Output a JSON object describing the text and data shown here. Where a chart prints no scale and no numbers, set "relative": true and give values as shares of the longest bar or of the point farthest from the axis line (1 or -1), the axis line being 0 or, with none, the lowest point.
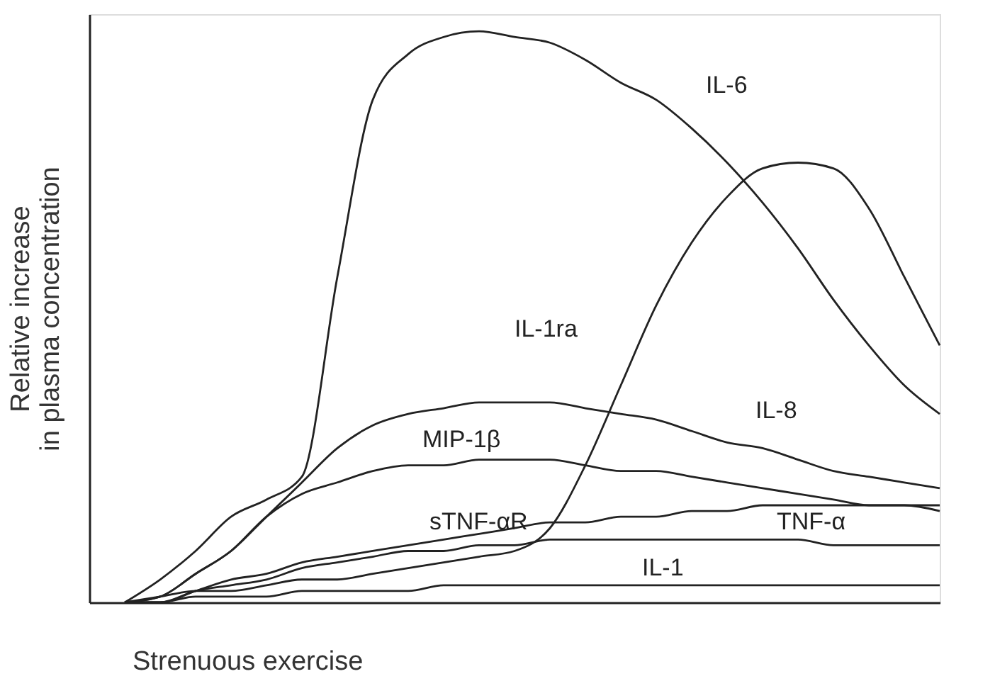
{
  "chart_data": {
    "type": "line",
    "relative": true,
    "xlabel": "Strenuous exercise",
    "ylabel": "Relative increase in plasma concentration",
    "grid": false,
    "legend": false,
    "marker": "none",
    "line_style": "solid",
    "categories": [
      null,
      null,
      null,
      null,
      null,
      null,
      null,
      null,
      null,
      null,
      null,
      null,
      null,
      null,
      null,
      null,
      null,
      null,
      null,
      null,
      null,
      null,
      null,
      null,
      null
    ],
    "series": [
      {
        "name": "IL-6",
        "color": "#222222",
        "values": [
          null,
          0,
          0.04,
          0.09,
          0.15,
          0.18,
          0.22,
          0.57,
          0.88,
          0.96,
          0.99,
          1,
          0.99,
          0.98,
          0.95,
          0.91,
          0.88,
          0.83,
          0.77,
          0.7,
          0.62,
          0.53,
          0.45,
          0.38,
          0.33
        ]
      },
      {
        "name": "IL-1ra",
        "color": "#222222",
        "values": [
          null,
          0,
          0.01,
          0.02,
          0.02,
          0.03,
          0.04,
          0.04,
          0.05,
          0.06,
          0.07,
          0.08,
          0.09,
          0.13,
          0.24,
          0.38,
          0.52,
          0.63,
          0.71,
          0.76,
          0.77,
          0.76,
          0.69,
          0.57,
          0.45
        ]
      },
      {
        "name": "IL-8",
        "color": "#222222",
        "values": [
          null,
          0,
          0.01,
          0.05,
          0.09,
          0.15,
          0.21,
          0.27,
          0.31,
          0.33,
          0.34,
          0.35,
          0.35,
          0.35,
          0.34,
          0.33,
          0.32,
          0.3,
          0.28,
          0.27,
          0.25,
          0.23,
          0.22,
          0.21,
          0.2
        ]
      },
      {
        "name": "MIP-1β",
        "color": "#222222",
        "values": [
          null,
          0,
          0.01,
          0.05,
          0.09,
          0.15,
          0.19,
          0.21,
          0.23,
          0.24,
          0.24,
          0.25,
          0.25,
          0.25,
          0.24,
          0.23,
          0.23,
          0.22,
          0.21,
          0.2,
          0.19,
          0.18,
          0.17,
          0.17,
          0.17
        ]
      },
      {
        "name": "sTNF-αR",
        "color": "#222222",
        "values": [
          null,
          0,
          0,
          0.02,
          0.03,
          0.04,
          0.06,
          0.07,
          0.08,
          0.09,
          0.09,
          0.1,
          0.1,
          0.11,
          0.11,
          0.11,
          0.11,
          0.11,
          0.11,
          0.11,
          0.11,
          0.1,
          0.1,
          0.1,
          0.1
        ]
      },
      {
        "name": "TNF-α",
        "color": "#222222",
        "values": [
          null,
          0,
          0,
          0.02,
          0.04,
          0.05,
          0.07,
          0.08,
          0.09,
          0.1,
          0.11,
          0.12,
          0.13,
          0.14,
          0.14,
          0.15,
          0.15,
          0.16,
          0.16,
          0.17,
          0.17,
          0.17,
          0.17,
          0.17,
          0.16
        ]
      },
      {
        "name": "IL-1",
        "color": "#222222",
        "values": [
          null,
          0,
          0,
          0.01,
          0.01,
          0.01,
          0.02,
          0.02,
          0.02,
          0.02,
          0.03,
          0.03,
          0.03,
          0.03,
          0.03,
          0.03,
          0.03,
          0.03,
          0.03,
          0.03,
          0.03,
          0.03,
          0.03,
          0.03,
          0.03
        ]
      }
    ]
  }
}
